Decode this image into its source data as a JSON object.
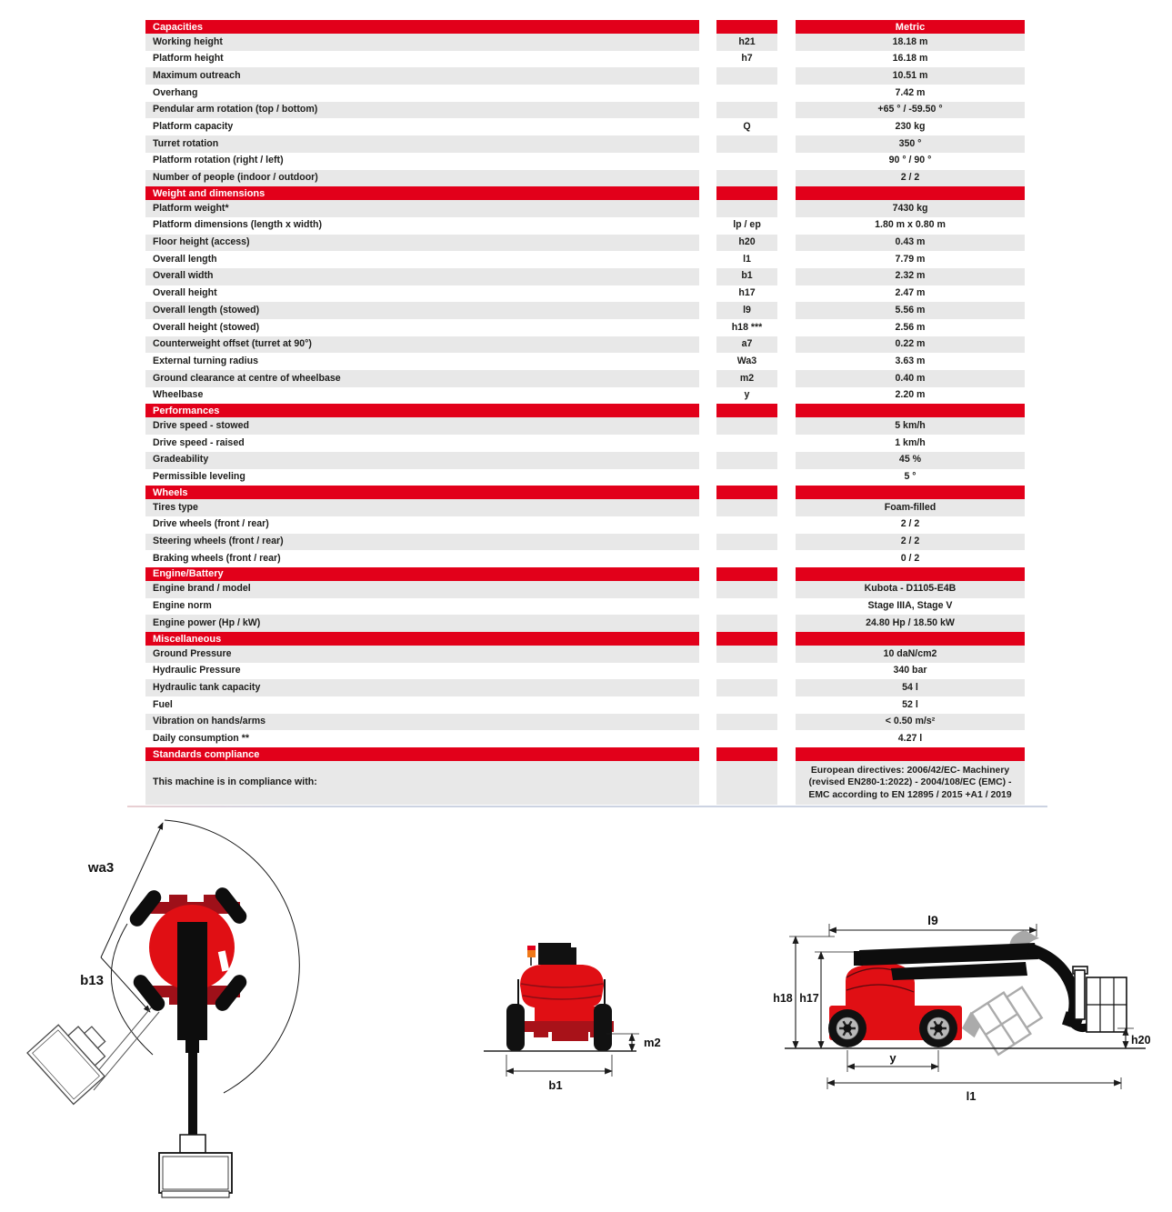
{
  "table": {
    "metric_header": "Metric",
    "sections": [
      {
        "title": "Capacities",
        "rows": [
          {
            "label": "Working height",
            "symbol": "h21",
            "value": "18.18 m"
          },
          {
            "label": "Platform height",
            "symbol": "h7",
            "value": "16.18 m"
          },
          {
            "label": "Maximum outreach",
            "symbol": "",
            "value": "10.51 m"
          },
          {
            "label": "Overhang",
            "symbol": "",
            "value": "7.42 m"
          },
          {
            "label": "Pendular arm rotation (top / bottom)",
            "symbol": "",
            "value": "+65 ° / -59.50 °"
          },
          {
            "label": "Platform capacity",
            "symbol": "Q",
            "value": "230 kg"
          },
          {
            "label": "Turret rotation",
            "symbol": "",
            "value": "350 °"
          },
          {
            "label": "Platform rotation (right / left)",
            "symbol": "",
            "value": "90 ° / 90 °"
          },
          {
            "label": "Number of people (indoor / outdoor)",
            "symbol": "",
            "value": "2 / 2"
          }
        ]
      },
      {
        "title": "Weight and dimensions",
        "rows": [
          {
            "label": "Platform weight*",
            "symbol": "",
            "value": "7430 kg"
          },
          {
            "label": "Platform dimensions (length x width)",
            "symbol": "lp / ep",
            "value": "1.80 m x 0.80 m"
          },
          {
            "label": "Floor height (access)",
            "symbol": "h20",
            "value": "0.43 m"
          },
          {
            "label": "Overall length",
            "symbol": "l1",
            "value": "7.79 m"
          },
          {
            "label": "Overall width",
            "symbol": "b1",
            "value": "2.32 m"
          },
          {
            "label": "Overall height",
            "symbol": "h17",
            "value": "2.47 m"
          },
          {
            "label": "Overall length (stowed)",
            "symbol": "l9",
            "value": "5.56 m"
          },
          {
            "label": "Overall height (stowed)",
            "symbol": "h18 ***",
            "value": "2.56 m"
          },
          {
            "label": "Counterweight offset (turret at 90°)",
            "symbol": "a7",
            "value": "0.22 m"
          },
          {
            "label": "External turning radius",
            "symbol": "Wa3",
            "value": "3.63 m"
          },
          {
            "label": "Ground clearance at centre of wheelbase",
            "symbol": "m2",
            "value": "0.40 m"
          },
          {
            "label": "Wheelbase",
            "symbol": "y",
            "value": "2.20 m"
          }
        ]
      },
      {
        "title": "Performances",
        "rows": [
          {
            "label": "Drive speed - stowed",
            "symbol": "",
            "value": "5 km/h"
          },
          {
            "label": "Drive speed - raised",
            "symbol": "",
            "value": "1 km/h"
          },
          {
            "label": "Gradeability",
            "symbol": "",
            "value": "45 %"
          },
          {
            "label": "Permissible leveling",
            "symbol": "",
            "value": "5 °"
          }
        ]
      },
      {
        "title": "Wheels",
        "rows": [
          {
            "label": "Tires type",
            "symbol": "",
            "value": "Foam-filled"
          },
          {
            "label": "Drive wheels (front / rear)",
            "symbol": "",
            "value": "2 / 2"
          },
          {
            "label": "Steering wheels (front / rear)",
            "symbol": "",
            "value": "2 / 2"
          },
          {
            "label": "Braking wheels (front / rear)",
            "symbol": "",
            "value": "0 / 2"
          }
        ]
      },
      {
        "title": "Engine/Battery",
        "rows": [
          {
            "label": "Engine brand / model",
            "symbol": "",
            "value": "Kubota - D1105-E4B"
          },
          {
            "label": "Engine norm",
            "symbol": "",
            "value": "Stage IIIA, Stage V"
          },
          {
            "label": "Engine power (Hp / kW)",
            "symbol": "",
            "value": "24.80 Hp / 18.50 kW"
          }
        ]
      },
      {
        "title": "Miscellaneous",
        "rows": [
          {
            "label": "Ground Pressure",
            "symbol": "",
            "value": "10 daN/cm2"
          },
          {
            "label": "Hydraulic Pressure",
            "symbol": "",
            "value": "340 bar"
          },
          {
            "label": "Hydraulic tank capacity",
            "symbol": "",
            "value": "54 l"
          },
          {
            "label": "Fuel",
            "symbol": "",
            "value": "52 l"
          },
          {
            "label": "Vibration on hands/arms",
            "symbol": "",
            "value": "< 0.50 m/s²"
          },
          {
            "label": "Daily consumption **",
            "symbol": "",
            "value": "4.27 l"
          }
        ]
      },
      {
        "title": "Standards compliance",
        "rows": [
          {
            "label": "This machine is in compliance with:",
            "symbol": "",
            "value": "European directives: 2006/42/EC- Machinery (revised EN280-1:2022) - 2004/108/EC (EMC) - EMC according to EN 12895 / 2015 +A1 / 2019",
            "tall": true
          }
        ]
      }
    ]
  },
  "diagrams": {
    "top_view": {
      "wa3": "wa3",
      "b13": "b13"
    },
    "front_view": {
      "m2": "m2",
      "b1": "b1"
    },
    "side_view": {
      "l9": "l9",
      "h18": "h18",
      "h17": "h17",
      "h20": "h20",
      "y": "y",
      "l1": "l1"
    }
  },
  "colors": {
    "accent_red": "#e2001a",
    "machine_red": "#e00f14",
    "dark_red": "#9e1019",
    "row_gray": "#e8e8e8",
    "text": "#1d1d1b",
    "ghost_gray": "#a8a8a8"
  }
}
